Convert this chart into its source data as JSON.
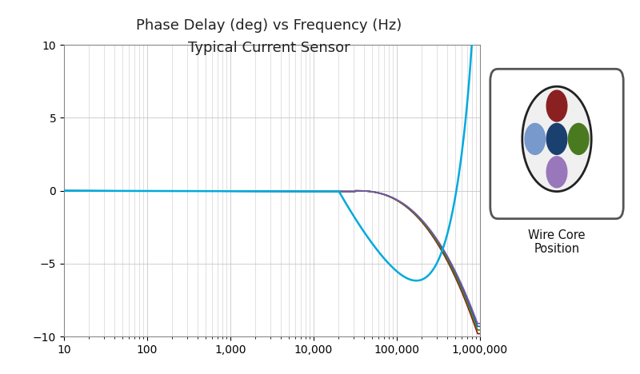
{
  "title_line1": "Phase Delay (deg) vs Frequency (Hz)",
  "title_line2": "Typical Current Sensor",
  "xmin": 10,
  "xmax": 1000000,
  "ymin": -10,
  "ymax": 10,
  "yticks": [
    -10,
    -5,
    0,
    5,
    10
  ],
  "xtick_labels": [
    "10",
    "100",
    "1,000",
    "10,000",
    "100,000",
    "1,000,000"
  ],
  "xtick_values": [
    10,
    100,
    1000,
    10000,
    100000,
    1000000
  ],
  "background_color": "#ffffff",
  "grid_color": "#c8c8c8",
  "line_colors": [
    "#00aadd",
    "#8B1a1a",
    "#2255aa",
    "#4a7a1a",
    "#7755aa"
  ],
  "wire_core_colors": {
    "top": "#8B2020",
    "left": "#7799cc",
    "center": "#1a4070",
    "right": "#4a7a20",
    "bottom": "#9977bb"
  },
  "wire_core_label": "Wire Core\nPosition",
  "title_fontsize": 13,
  "tick_fontsize": 10,
  "rolloff_start_log": 4.3,
  "cyan_min": -4.0,
  "cyan_resonance_log": 5.93,
  "other_depths": [
    -9.8,
    -9.3,
    -9.55,
    -9.1,
    -8.7
  ],
  "other_rolloff_log": 4.5,
  "other_resonance_log": 5.97
}
